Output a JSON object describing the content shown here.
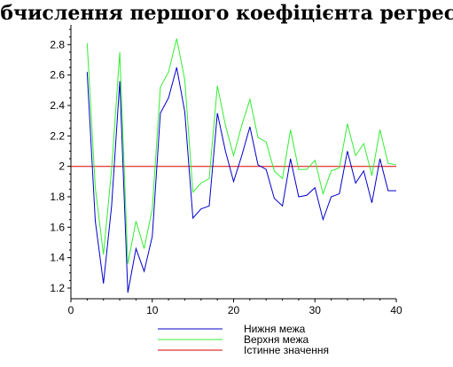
{
  "chart_data": {
    "type": "line",
    "title": "Обчислення першого коефіцієнта регресії",
    "xlabel": "",
    "ylabel": "",
    "xlim": [
      0,
      40
    ],
    "ylim": [
      1.13,
      2.93
    ],
    "xticks": [
      0,
      10,
      20,
      30,
      40
    ],
    "yticks": [
      1.2,
      1.4,
      1.6,
      1.8,
      2,
      2.2,
      2.4,
      2.6,
      2.8
    ],
    "grid": false,
    "legend_position": "bottom",
    "series": [
      {
        "name": "Нижня межа",
        "color": "#0000cc",
        "x": [
          2,
          3,
          4,
          5,
          6,
          7,
          8,
          9,
          10,
          11,
          12,
          13,
          14,
          15,
          16,
          17,
          18,
          19,
          20,
          21,
          22,
          23,
          24,
          25,
          26,
          27,
          28,
          29,
          30,
          31,
          32,
          33,
          34,
          35,
          36,
          37,
          38,
          39,
          40
        ],
        "y": [
          2.62,
          1.64,
          1.23,
          1.74,
          2.56,
          1.17,
          1.46,
          1.31,
          1.54,
          2.35,
          2.45,
          2.65,
          2.36,
          1.66,
          1.72,
          1.74,
          2.35,
          2.1,
          1.9,
          2.07,
          2.26,
          2.01,
          1.98,
          1.79,
          1.74,
          2.05,
          1.8,
          1.81,
          1.86,
          1.65,
          1.8,
          1.82,
          2.1,
          1.89,
          1.97,
          1.76,
          2.05,
          1.84,
          1.84
        ]
      },
      {
        "name": "Верхня межа",
        "color": "#33ee33",
        "x": [
          2,
          3,
          4,
          5,
          6,
          7,
          8,
          9,
          10,
          11,
          12,
          13,
          14,
          15,
          16,
          17,
          18,
          19,
          20,
          21,
          22,
          23,
          24,
          25,
          26,
          27,
          28,
          29,
          30,
          31,
          32,
          33,
          34,
          35,
          36,
          37,
          38,
          39,
          40
        ],
        "y": [
          2.81,
          1.86,
          1.42,
          1.98,
          2.75,
          1.36,
          1.64,
          1.46,
          1.72,
          2.52,
          2.62,
          2.84,
          2.57,
          1.83,
          1.89,
          1.92,
          2.53,
          2.27,
          2.07,
          2.27,
          2.44,
          2.19,
          2.16,
          1.97,
          1.92,
          2.24,
          1.98,
          1.98,
          2.04,
          1.82,
          1.97,
          1.99,
          2.28,
          2.07,
          2.15,
          1.94,
          2.24,
          2.02,
          2.01
        ]
      },
      {
        "name": "Істинне значення",
        "color": "#dd0000",
        "x": [
          0,
          40
        ],
        "y": [
          2,
          2
        ]
      }
    ]
  }
}
